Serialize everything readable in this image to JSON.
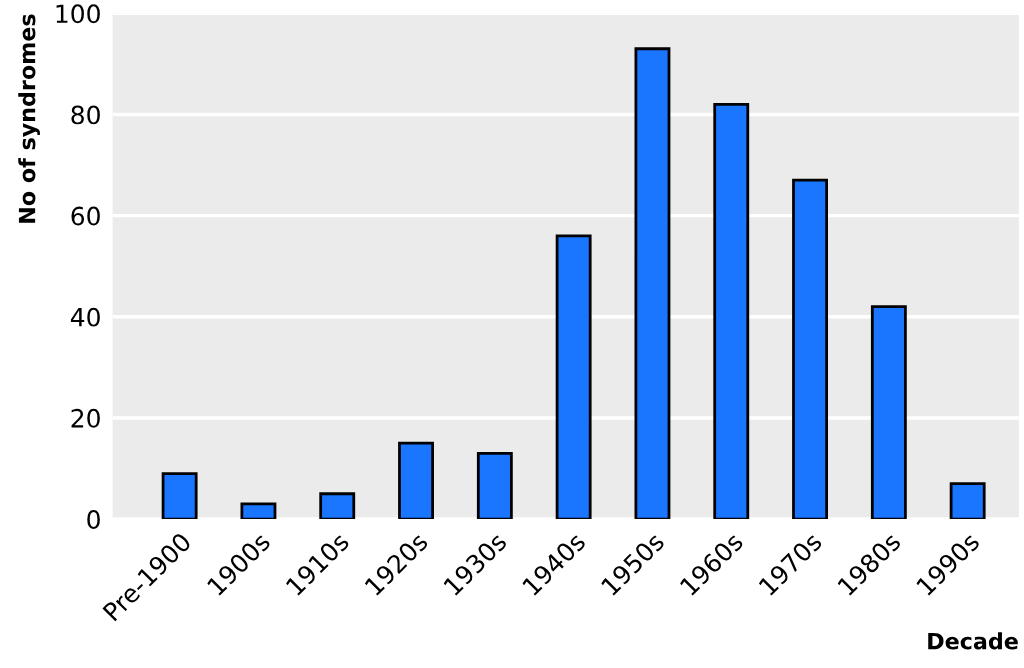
{
  "chart_data": {
    "type": "bar",
    "xlabel": "Decade",
    "ylabel": "No of syndromes",
    "categories": [
      "Pre-1900",
      "1900s",
      "1910s",
      "1920s",
      "1930s",
      "1940s",
      "1950s",
      "1960s",
      "1970s",
      "1980s",
      "1990s"
    ],
    "values": [
      9,
      3,
      5,
      15,
      13,
      56,
      93,
      82,
      67,
      42,
      7
    ],
    "color": "#1a75ff",
    "ylim": [
      0,
      100
    ],
    "yticks": [
      0,
      20,
      40,
      60,
      80,
      100
    ],
    "grid": "y"
  }
}
